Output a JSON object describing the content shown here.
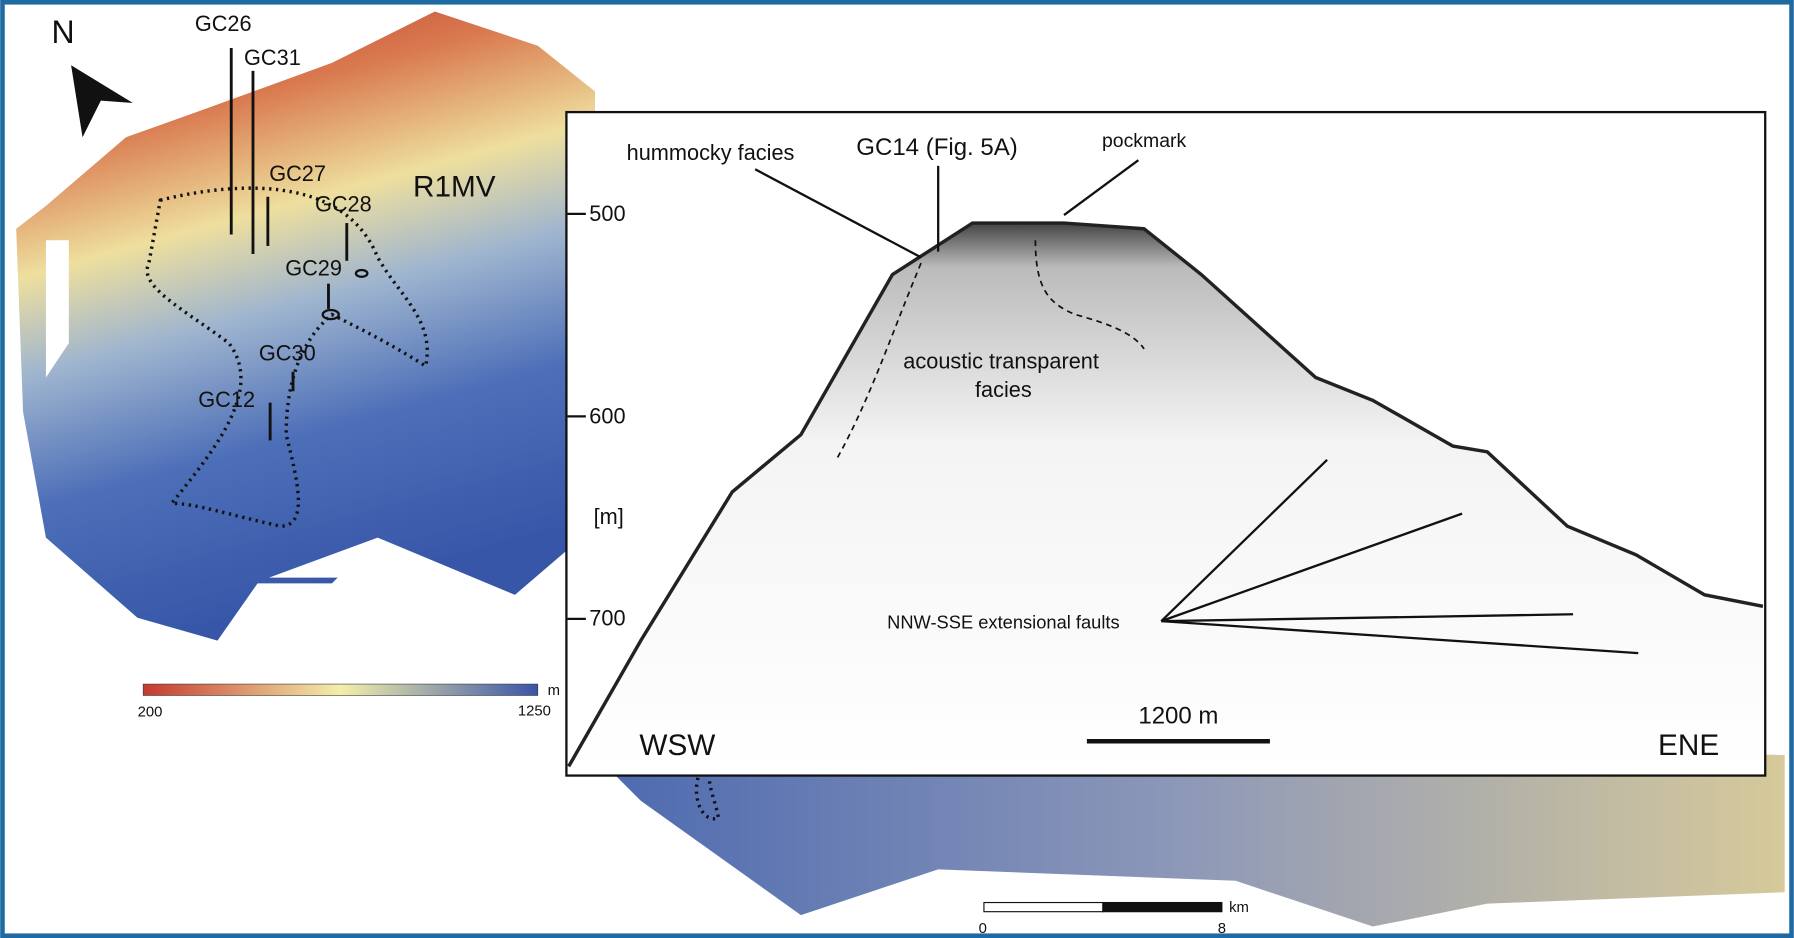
{
  "north_arrow": {
    "label": "N"
  },
  "map": {
    "region_label": "R1MV",
    "cores": [
      {
        "label": "GC26"
      },
      {
        "label": "GC31"
      },
      {
        "label": "GC27"
      },
      {
        "label": "GC28"
      },
      {
        "label": "GC29"
      },
      {
        "label": "GC30"
      },
      {
        "label": "GC12"
      }
    ]
  },
  "colorbar": {
    "min_label": "200",
    "max_label": "1250",
    "unit": "m"
  },
  "scale_bar": {
    "start": "0",
    "end": "8",
    "unit": "km"
  },
  "profile": {
    "depth_ticks": [
      "500",
      "600",
      "700"
    ],
    "depth_unit": "[m]",
    "annotations": [
      "hummocky facies",
      "GC14 (Fig. 5A)",
      "pockmark",
      "acoustic transparent",
      "facies",
      "NNW-SSE extensional faults"
    ],
    "scale_label": "1200 m",
    "left_end": "WSW",
    "right_end": "ENE"
  }
}
